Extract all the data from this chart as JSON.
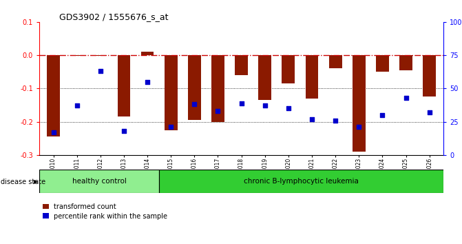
{
  "title": "GDS3902 / 1555676_s_at",
  "samples": [
    "GSM658010",
    "GSM658011",
    "GSM658012",
    "GSM658013",
    "GSM658014",
    "GSM658015",
    "GSM658016",
    "GSM658017",
    "GSM658018",
    "GSM658019",
    "GSM658020",
    "GSM658021",
    "GSM658022",
    "GSM658023",
    "GSM658024",
    "GSM658025",
    "GSM658026"
  ],
  "bar_values": [
    -0.245,
    -0.002,
    -0.001,
    -0.185,
    0.01,
    -0.225,
    -0.195,
    -0.2,
    -0.06,
    -0.135,
    -0.085,
    -0.13,
    -0.04,
    -0.29,
    -0.05,
    -0.045,
    -0.125
  ],
  "blue_values": [
    17,
    37,
    63,
    18,
    55,
    21,
    38,
    33,
    39,
    37,
    35,
    27,
    26,
    21,
    30,
    43,
    32
  ],
  "healthy_count": 5,
  "ylim_left": [
    -0.3,
    0.1
  ],
  "ylim_right": [
    0,
    100
  ],
  "yticks_left": [
    0.1,
    0.0,
    -0.1,
    -0.2,
    -0.3
  ],
  "yticks_right": [
    100,
    75,
    50,
    25,
    0
  ],
  "bar_color": "#8B1A00",
  "blue_color": "#0000CC",
  "healthy_color": "#90EE90",
  "leukemia_color": "#32CD32",
  "dashed_line_color": "#CC0000",
  "label_bar": "transformed count",
  "label_blue": "percentile rank within the sample",
  "disease_label": "disease state",
  "group1": "healthy control",
  "group2": "chronic B-lymphocytic leukemia"
}
